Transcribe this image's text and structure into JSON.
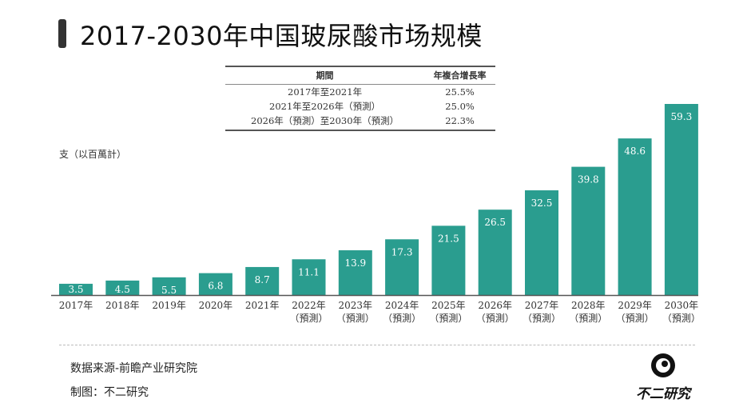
{
  "title": "2017-2030年中国玻尿酸市场规模",
  "cagr_table": {
    "headers": [
      "期間",
      "年複合增長率"
    ],
    "rows": [
      [
        "2017年至2021年",
        "25.5%"
      ],
      [
        "2021年至2026年（預測）",
        "25.0%"
      ],
      [
        "2026年（預測）至2030年（預測）",
        "22.3%"
      ]
    ]
  },
  "chart_data": {
    "type": "bar",
    "unit_label": "支（以百萬計）",
    "categories": [
      "2017年",
      "2018年",
      "2019年",
      "2020年",
      "2021年",
      "2022年",
      "2023年",
      "2024年",
      "2025年",
      "2026年",
      "2027年",
      "2028年",
      "2029年",
      "2030年"
    ],
    "category_sublabels": [
      "",
      "",
      "",
      "",
      "",
      "（預測）",
      "（預測）",
      "（預測）",
      "（預測）",
      "（預測）",
      "（預測）",
      "（預測）",
      "（預測）",
      "（預測）"
    ],
    "values": [
      3.5,
      4.5,
      5.5,
      6.8,
      8.7,
      11.1,
      13.9,
      17.3,
      21.5,
      26.5,
      32.5,
      39.8,
      48.6,
      59.3
    ],
    "ylim": [
      0,
      60
    ],
    "grid": false,
    "bar_color": "#2a9d8f"
  },
  "footer": {
    "source": "数据来源-前瞻产业研究院",
    "made_by": "制图：不二研究",
    "logo_text": "不二研究"
  }
}
